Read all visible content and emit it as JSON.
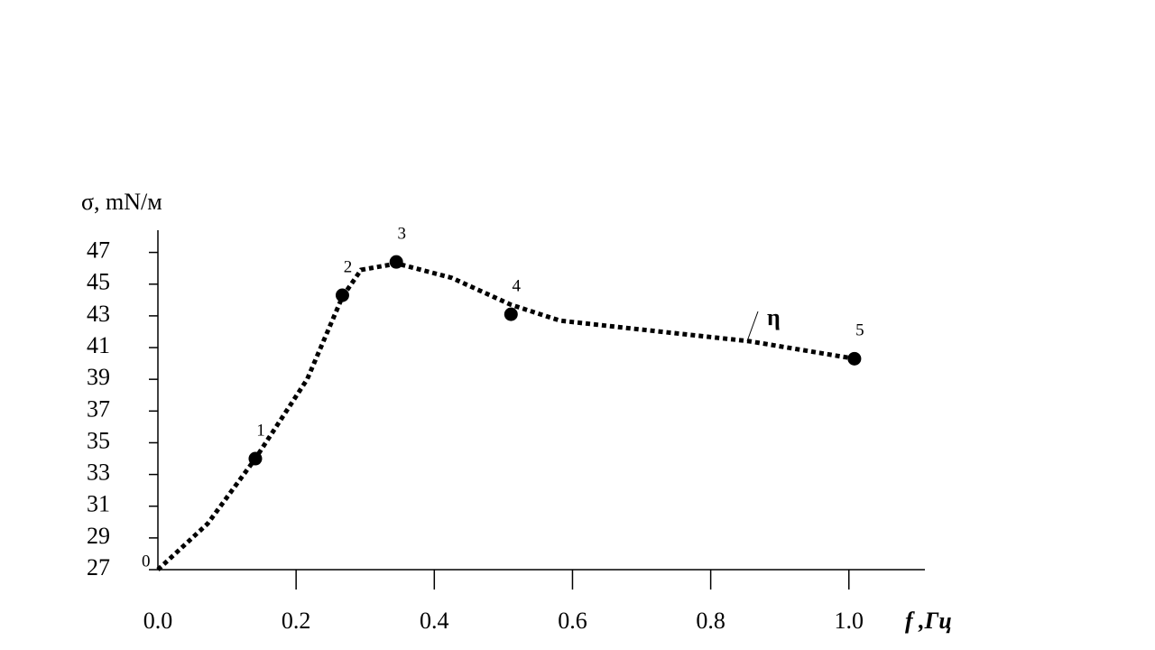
{
  "chart_data": {
    "type": "scatter",
    "y_label": "σ, mN/м",
    "x_label": "f ,Гц",
    "annotation": "η",
    "xlim": [
      0,
      1.11
    ],
    "ylim": [
      27,
      48.4
    ],
    "xticks": [
      {
        "value": 0,
        "label": "0.0"
      },
      0.2,
      0.4,
      0.6,
      0.8,
      {
        "value": 1,
        "label": "1.0"
      }
    ],
    "yticks": [
      27,
      29,
      31,
      33,
      35,
      37,
      39,
      41,
      43,
      45,
      47
    ],
    "origin_label": "0",
    "series": [
      {
        "color": "#000000",
        "x": [
          0.141,
          0.267,
          0.345,
          0.511,
          1.008
        ],
        "values": [
          34.0,
          44.3,
          46.4,
          43.1,
          40.3
        ],
        "point_labels": [
          "1",
          "2",
          "3",
          "4",
          "5"
        ]
      }
    ],
    "curve": {
      "color": "#000000",
      "x": [
        0,
        0.072,
        0.141,
        0.216,
        0.267,
        0.294,
        0.346,
        0.425,
        0.511,
        0.582,
        0.686,
        0.856,
        1.008
      ],
      "values": [
        27,
        29.9,
        34.0,
        39.0,
        44.2,
        45.9,
        46.3,
        45.4,
        43.7,
        42.7,
        42.2,
        41.4,
        40.3
      ]
    }
  }
}
